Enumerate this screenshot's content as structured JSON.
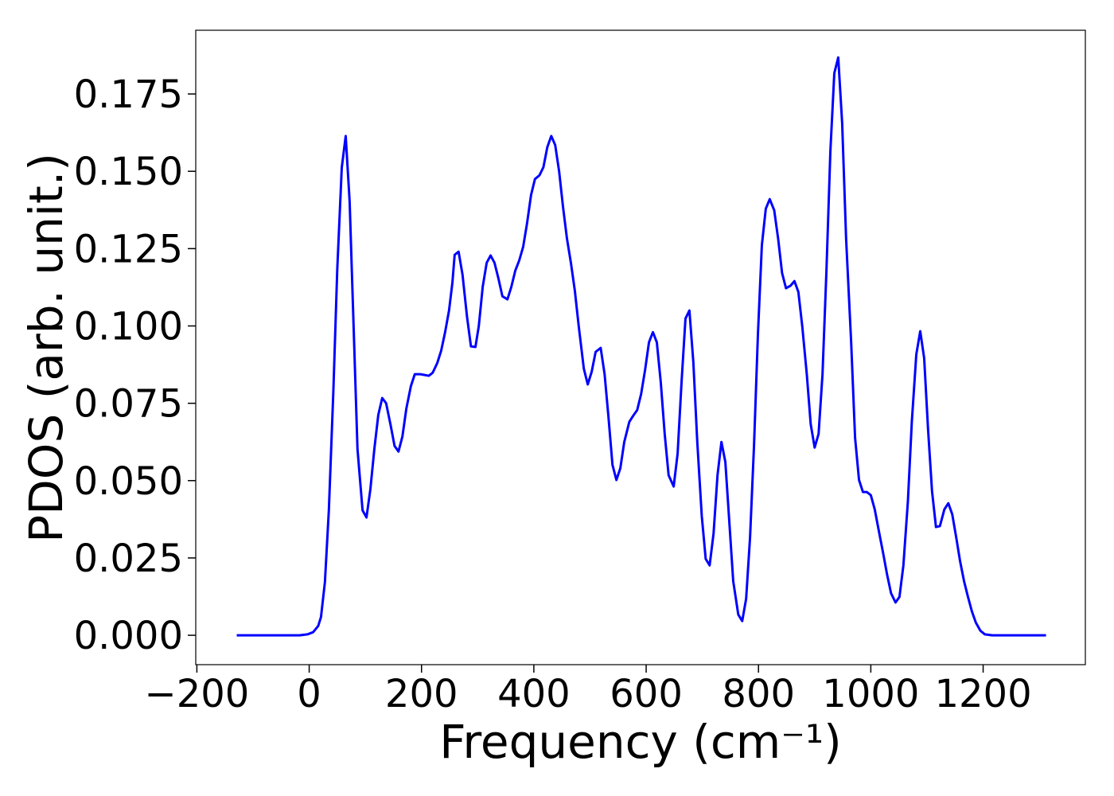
{
  "chart_data": {
    "type": "line",
    "x_label": "Frequency (cm⁻¹)",
    "y_label": "PDOS (arb. unit.)",
    "color": "#0000ff",
    "x": [
      -129,
      -67,
      -17,
      -3,
      7,
      16,
      21,
      28,
      35,
      43,
      50,
      58,
      65,
      72,
      79,
      86,
      95,
      102,
      109,
      116,
      123,
      130,
      137,
      145,
      152,
      159,
      166,
      173,
      181,
      188,
      198,
      213,
      220,
      228,
      235,
      242,
      249,
      255,
      259,
      266,
      273,
      281,
      288,
      296,
      302,
      309,
      316,
      323,
      330,
      337,
      344,
      353,
      360,
      367,
      374,
      381,
      388,
      395,
      402,
      410,
      417,
      424,
      431,
      438,
      445,
      452,
      459,
      466,
      473,
      480,
      489,
      496,
      503,
      510,
      519,
      526,
      533,
      540,
      547,
      554,
      561,
      570,
      577,
      584,
      591,
      598,
      605,
      612,
      619,
      626,
      633,
      640,
      649,
      656,
      663,
      670,
      677,
      684,
      691,
      699,
      706,
      713,
      720,
      727,
      734,
      741,
      748,
      755,
      764,
      771,
      778,
      785,
      792,
      799,
      806,
      813,
      820,
      828,
      835,
      842,
      849,
      857,
      864,
      871,
      878,
      886,
      893,
      900,
      907,
      914,
      921,
      928,
      935,
      942,
      949,
      956,
      965,
      972,
      979,
      986,
      993,
      1000,
      1007,
      1014,
      1022,
      1029,
      1036,
      1044,
      1051,
      1058,
      1066,
      1073,
      1081,
      1088,
      1095,
      1102,
      1109,
      1116,
      1123,
      1131,
      1138,
      1145,
      1152,
      1159,
      1166,
      1173,
      1180,
      1187,
      1195,
      1203,
      1216,
      1312
    ],
    "values": [
      0,
      0,
      0,
      0.0003,
      0.001,
      0.003,
      0.0059,
      0.0172,
      0.0404,
      0.0788,
      0.1184,
      0.1512,
      0.1614,
      0.1403,
      0.1003,
      0.0602,
      0.0404,
      0.0381,
      0.0473,
      0.0602,
      0.0712,
      0.0767,
      0.075,
      0.0679,
      0.0612,
      0.0594,
      0.0643,
      0.0733,
      0.0805,
      0.0844,
      0.0844,
      0.0839,
      0.0849,
      0.088,
      0.092,
      0.098,
      0.105,
      0.114,
      0.123,
      0.124,
      0.1166,
      0.103,
      0.0934,
      0.0932,
      0.1,
      0.1127,
      0.1204,
      0.1228,
      0.1204,
      0.1153,
      0.1096,
      0.1086,
      0.1127,
      0.1179,
      0.1212,
      0.1256,
      0.1333,
      0.1423,
      0.1475,
      0.1487,
      0.1513,
      0.1578,
      0.1614,
      0.1585,
      0.15,
      0.1384,
      0.1282,
      0.1204,
      0.1114,
      0.0998,
      0.0862,
      0.0811,
      0.0852,
      0.0916,
      0.0929,
      0.0844,
      0.0703,
      0.0551,
      0.0502,
      0.054,
      0.0625,
      0.069,
      0.071,
      0.0728,
      0.078,
      0.0857,
      0.0947,
      0.098,
      0.0947,
      0.0818,
      0.0651,
      0.0517,
      0.0481,
      0.0587,
      0.0818,
      0.1024,
      0.105,
      0.0883,
      0.0625,
      0.0386,
      0.0247,
      0.0226,
      0.0329,
      0.0517,
      0.0625,
      0.056,
      0.0368,
      0.0175,
      0.0067,
      0.0046,
      0.0118,
      0.0317,
      0.0612,
      0.0973,
      0.1261,
      0.1379,
      0.141,
      0.1374,
      0.1282,
      0.1171,
      0.1122,
      0.113,
      0.1145,
      0.111,
      0.0998,
      0.0844,
      0.0682,
      0.0607,
      0.0651,
      0.0844,
      0.1179,
      0.1565,
      0.1817,
      0.1868,
      0.1655,
      0.1282,
      0.0947,
      0.0638,
      0.0502,
      0.0463,
      0.0463,
      0.0453,
      0.0407,
      0.034,
      0.0265,
      0.0196,
      0.0136,
      0.0106,
      0.0124,
      0.0226,
      0.0432,
      0.069,
      0.0908,
      0.0983,
      0.0896,
      0.0664,
      0.0466,
      0.035,
      0.0353,
      0.0407,
      0.0427,
      0.0391,
      0.0317,
      0.0239,
      0.0175,
      0.0124,
      0.0077,
      0.0041,
      0.0015,
      0.0003,
      0,
      0
    ],
    "xlim": [
      -202,
      1382
    ],
    "ylim": [
      -0.0095,
      0.1956
    ],
    "xticks": [
      {
        "value": -200,
        "label": "−200"
      },
      0,
      200,
      400,
      600,
      800,
      1000,
      1200
    ],
    "yticks": [
      {
        "value": 0,
        "label": "0.000"
      },
      {
        "value": 0.025,
        "label": "0.025"
      },
      {
        "value": 0.05,
        "label": "0.050"
      },
      {
        "value": 0.075,
        "label": "0.075"
      },
      {
        "value": 0.1,
        "label": "0.100"
      },
      {
        "value": 0.125,
        "label": "0.125"
      },
      {
        "value": 0.15,
        "label": "0.150"
      },
      {
        "value": 0.175,
        "label": "0.175"
      }
    ],
    "grid": false
  }
}
